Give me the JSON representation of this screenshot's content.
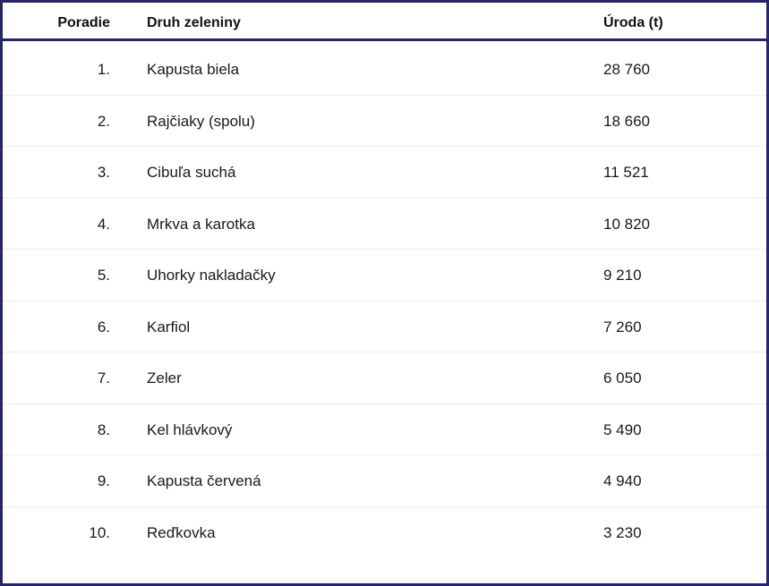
{
  "table": {
    "headers": {
      "rank": "Poradie",
      "name": "Druh zeleniny",
      "yield": "Úroda (t)"
    },
    "rows": [
      {
        "rank": "1.",
        "name": "Kapusta biela",
        "yield": "28 760"
      },
      {
        "rank": "2.",
        "name": "Rajčiaky (spolu)",
        "yield": "18 660"
      },
      {
        "rank": "3.",
        "name": "Cibuľa suchá",
        "yield": "11 521"
      },
      {
        "rank": "4.",
        "name": "Mrkva a karotka",
        "yield": "10 820"
      },
      {
        "rank": "5.",
        "name": "Uhorky nakladačky",
        "yield": "9 210"
      },
      {
        "rank": "6.",
        "name": "Karfiol",
        "yield": "7 260"
      },
      {
        "rank": "7.",
        "name": "Zeler",
        "yield": "6 050"
      },
      {
        "rank": "8.",
        "name": "Kel hlávkový",
        "yield": "5 490"
      },
      {
        "rank": "9.",
        "name": "Kapusta červená",
        "yield": "4 940"
      },
      {
        "rank": "10.",
        "name": "Reďkovka",
        "yield": "3 230"
      }
    ]
  },
  "colors": {
    "border": "#25256b",
    "text": "#1a1a1a",
    "row_divider": "#ececec"
  }
}
